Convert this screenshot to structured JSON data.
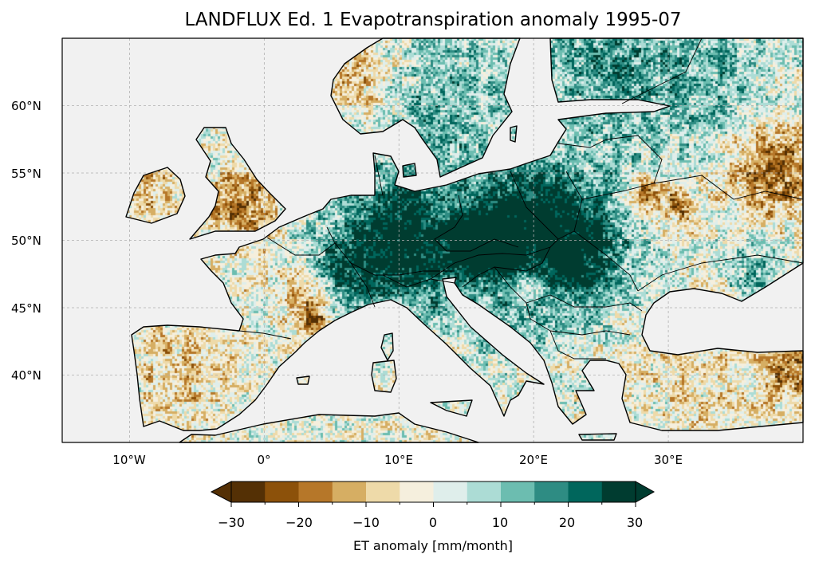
{
  "title": "LANDFLUX Ed. 1 Evapotranspiration anomaly 1995-07",
  "map": {
    "projection": "PlateCarree",
    "extent_lon": [
      -15,
      40
    ],
    "extent_lat": [
      35,
      65
    ],
    "x_ticks": [
      "10°W",
      "0°",
      "10°E",
      "20°E",
      "30°E"
    ],
    "y_ticks": [
      "60°N",
      "55°N",
      "50°N",
      "45°N",
      "40°N"
    ],
    "ocean_color": "#f1f1f1"
  },
  "colorbar": {
    "label": "ET anomaly [mm/month]",
    "ticks": [
      "−30",
      "−20",
      "−10",
      "0",
      "10",
      "20",
      "30"
    ],
    "levels": [
      -30,
      -25,
      -20,
      -15,
      -10,
      -5,
      0,
      5,
      10,
      15,
      20,
      25,
      30
    ],
    "colors": [
      "#543005",
      "#8c510a",
      "#b67729",
      "#d6ae63",
      "#eedaa9",
      "#f5efdd",
      "#dfeeeb",
      "#acdcd5",
      "#6cbdb0",
      "#2e8c83",
      "#00665c",
      "#003c30"
    ],
    "extend": "both"
  }
}
